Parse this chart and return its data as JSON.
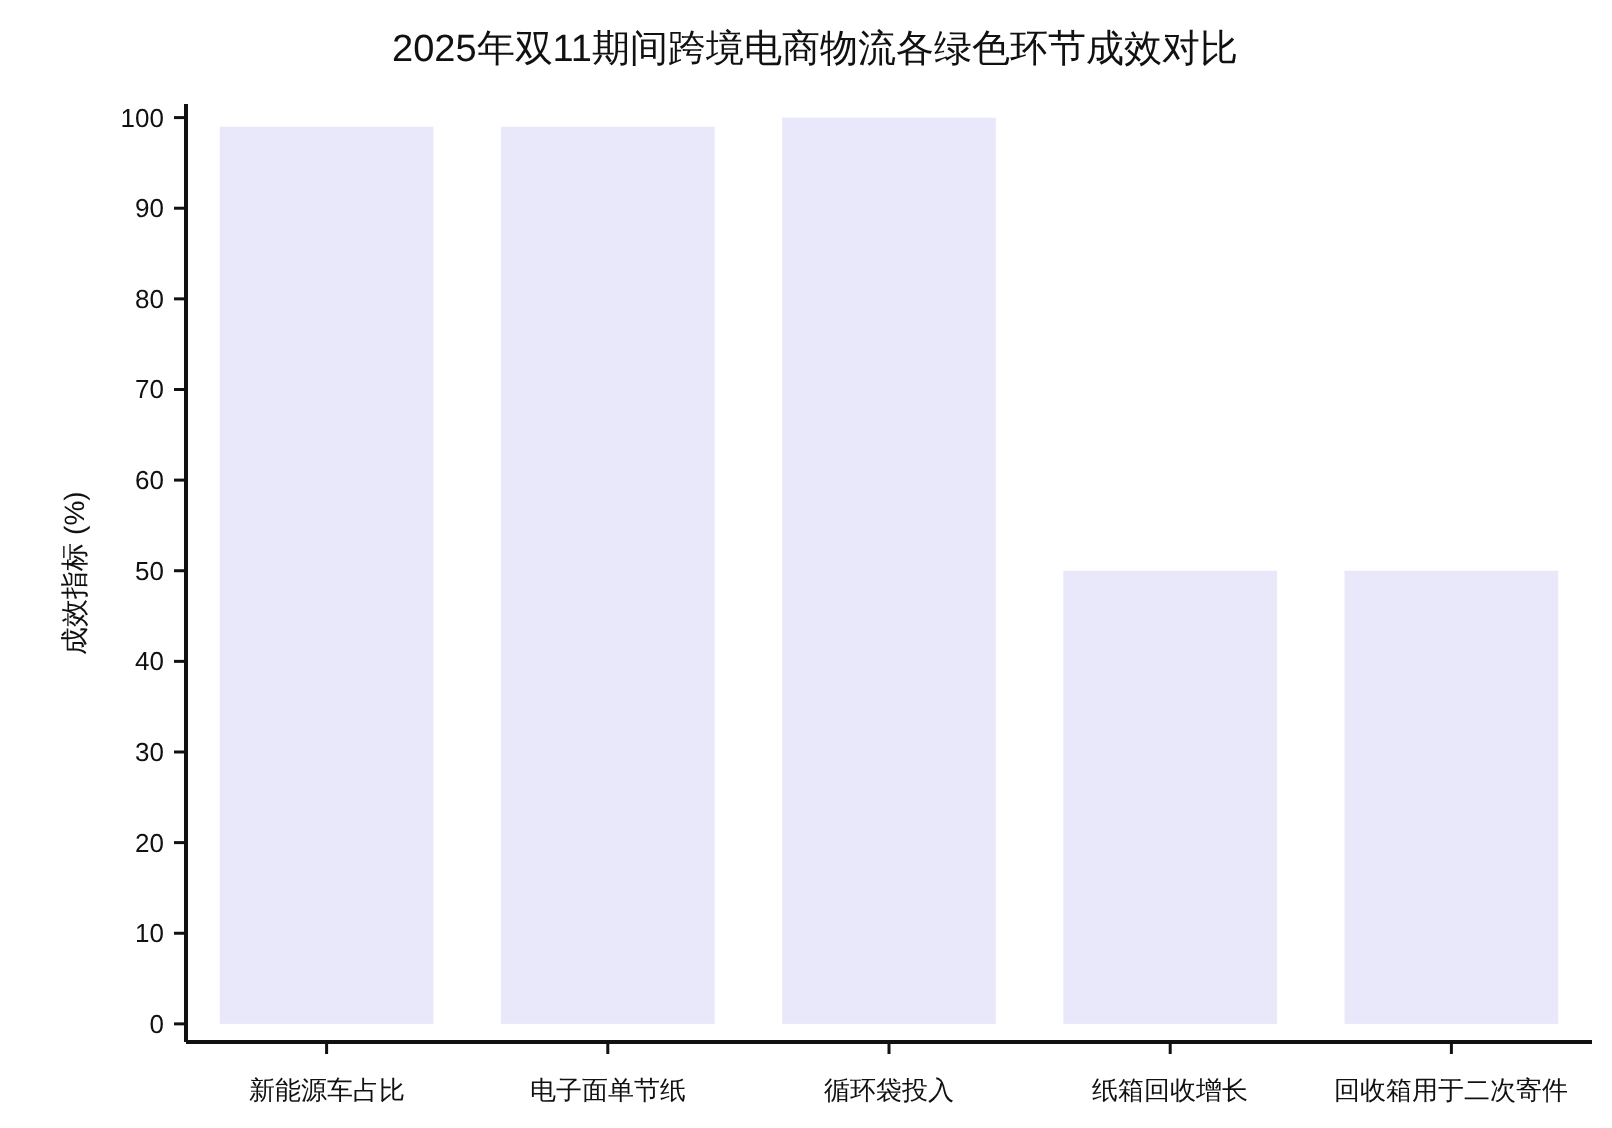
{
  "chart_data": {
    "type": "bar",
    "title": "2025年双11期间跨境电商物流各绿色环节成效对比",
    "ylabel": "成效指标 (%)",
    "categories": [
      "新能源车占比",
      "电子面单节纸",
      "循环袋投入",
      "纸箱回收增长",
      "回收箱用于二次寄件"
    ],
    "values": [
      99,
      99,
      100,
      50,
      50
    ],
    "color": "#e8e8fa",
    "ylim": [
      -2,
      101.5
    ],
    "yticks": [
      0,
      10,
      20,
      30,
      40,
      50,
      60,
      70,
      80,
      90,
      100
    ]
  }
}
